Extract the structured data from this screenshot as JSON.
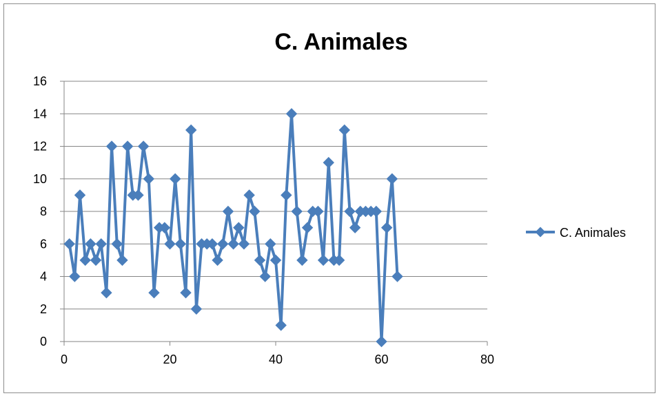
{
  "chart_data": {
    "type": "line",
    "title": "C. Animales",
    "xlabel": "",
    "ylabel": "",
    "xlim": [
      0,
      80
    ],
    "ylim": [
      0,
      16
    ],
    "x_ticks": [
      0,
      20,
      40,
      60,
      80
    ],
    "y_ticks": [
      0,
      2,
      4,
      6,
      8,
      10,
      12,
      14,
      16
    ],
    "grid": "horizontal",
    "legend_position": "right",
    "series": [
      {
        "name": "C. Animales",
        "color": "#4a7ebb",
        "marker": "diamond",
        "x": [
          1,
          2,
          3,
          4,
          5,
          6,
          7,
          8,
          9,
          10,
          11,
          12,
          13,
          14,
          15,
          16,
          17,
          18,
          19,
          20,
          21,
          22,
          23,
          24,
          25,
          26,
          27,
          28,
          29,
          30,
          31,
          32,
          33,
          34,
          35,
          36,
          37,
          38,
          39,
          40,
          41,
          42,
          43,
          44,
          45,
          46,
          47,
          48,
          49,
          50,
          51,
          52,
          53,
          54,
          55,
          56,
          57,
          58,
          59,
          60,
          61,
          62,
          63
        ],
        "values": [
          6,
          4,
          9,
          5,
          6,
          5,
          6,
          3,
          12,
          6,
          5,
          12,
          9,
          9,
          12,
          10,
          3,
          7,
          7,
          6,
          10,
          6,
          3,
          13,
          2,
          6,
          6,
          6,
          5,
          6,
          8,
          6,
          7,
          6,
          9,
          8,
          5,
          4,
          6,
          5,
          1,
          9,
          14,
          8,
          5,
          7,
          8,
          8,
          5,
          11,
          5,
          5,
          13,
          8,
          7,
          8,
          8,
          8,
          8,
          0,
          7,
          10,
          4
        ]
      }
    ]
  }
}
